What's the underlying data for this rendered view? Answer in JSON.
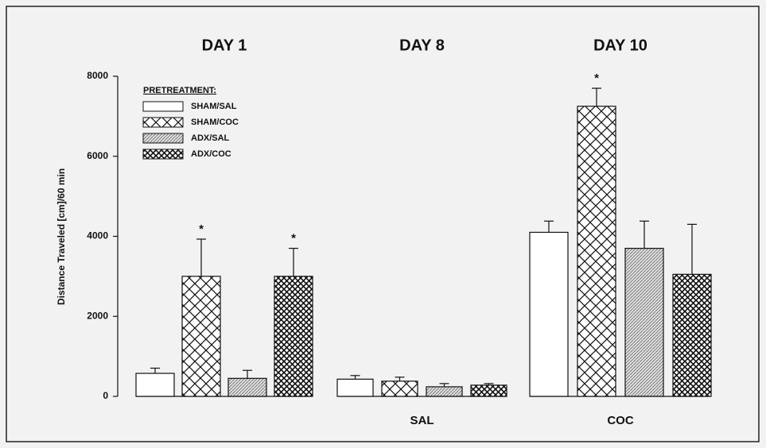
{
  "chart_data": {
    "type": "bar",
    "y_label": "Distance Traveled [cm]/60 min",
    "legend_title": "PRETREATMENT:",
    "categories": [
      "DAY 1",
      "DAY 8",
      "DAY 10"
    ],
    "group_labels": [
      null,
      "SAL",
      "COC"
    ],
    "ylim": [
      0,
      8000
    ],
    "yticks": [
      0,
      2000,
      4000,
      6000,
      8000
    ],
    "legend": "upper left",
    "series": [
      {
        "name": "SHAM/SAL",
        "color": "#ffffff",
        "pattern": "none",
        "values": [
          575,
          430,
          4100
        ],
        "errors": [
          130,
          90,
          280
        ],
        "markers": [
          null,
          null,
          null
        ]
      },
      {
        "name": "SHAM/COC",
        "color": "#ffffff",
        "pattern": "crosshatch",
        "values": [
          3000,
          380,
          7250
        ],
        "errors": [
          930,
          100,
          450
        ],
        "markers": [
          "*",
          null,
          "*"
        ]
      },
      {
        "name": "ADX/SAL",
        "color": "#d8d8d8",
        "pattern": "hatch",
        "values": [
          450,
          240,
          3700
        ],
        "errors": [
          200,
          80,
          680
        ],
        "markers": [
          null,
          null,
          null
        ]
      },
      {
        "name": "ADX/COC",
        "color": "#ffffff",
        "pattern": "dense-crosshatch",
        "values": [
          3000,
          280,
          3050
        ],
        "errors": [
          700,
          40,
          1250
        ],
        "markers": [
          "*",
          null,
          null
        ]
      }
    ]
  }
}
